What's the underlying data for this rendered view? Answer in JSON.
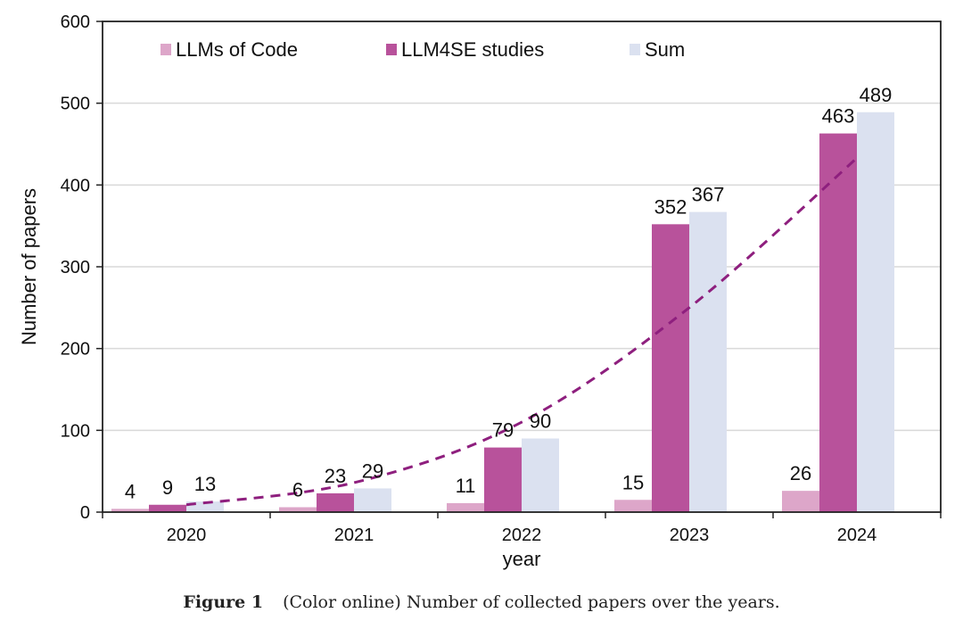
{
  "chart_data": {
    "type": "bar",
    "categories": [
      "2020",
      "2021",
      "2022",
      "2023",
      "2024"
    ],
    "series": [
      {
        "name": "LLMs  of Code",
        "color": "#dda6c9",
        "values": [
          4,
          6,
          11,
          15,
          26
        ]
      },
      {
        "name": "LLM4SE studies",
        "color": "#b8529b",
        "values": [
          9,
          23,
          79,
          352,
          463
        ]
      },
      {
        "name": "Sum",
        "color": "#dbe1f0",
        "values": [
          13,
          29,
          90,
          367,
          489
        ]
      }
    ],
    "trendline": {
      "style": "dashed",
      "color": "#8e1f7e",
      "points": [
        [
          0,
          9
        ],
        [
          1,
          36
        ],
        [
          2,
          110
        ],
        [
          3,
          250
        ],
        [
          4,
          433
        ]
      ]
    },
    "xlabel": "year",
    "ylabel": "Number of papers",
    "ylim": [
      0,
      600
    ],
    "yticks": [
      0,
      100,
      200,
      300,
      400,
      500,
      600
    ],
    "grid": true,
    "legend": "top"
  },
  "caption": {
    "label": "Figure 1",
    "text": "(Color online) Number of collected papers over the years."
  }
}
